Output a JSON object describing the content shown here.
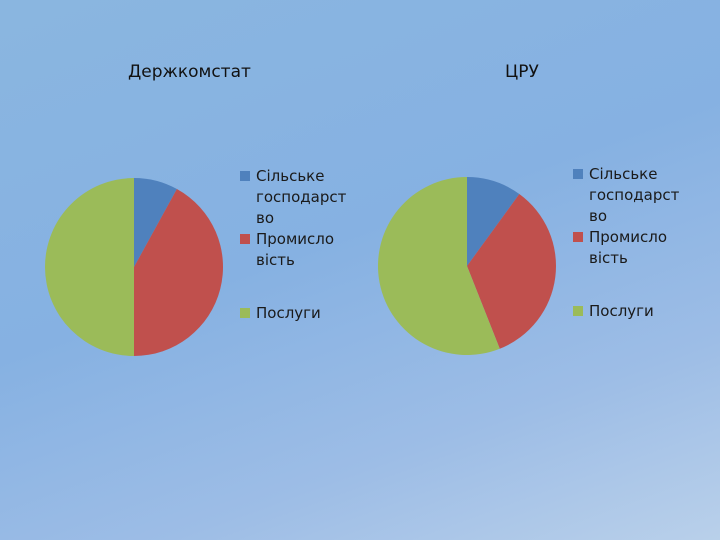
{
  "chart_data": [
    {
      "type": "pie",
      "title": "Держкомстат",
      "categories": [
        "Сільське господарст во",
        "Промисло вість",
        "Послуги"
      ],
      "values": [
        8,
        42,
        50
      ],
      "colors": [
        "#4f81bd",
        "#c0504d",
        "#9bbb59"
      ],
      "legend_position": "right"
    },
    {
      "type": "pie",
      "title": "ЦРУ",
      "categories": [
        "Сільське господарст во",
        "Промисло вість",
        "Послуги"
      ],
      "values": [
        10,
        34,
        56
      ],
      "colors": [
        "#4f81bd",
        "#c0504d",
        "#9bbb59"
      ],
      "legend_position": "right"
    }
  ]
}
